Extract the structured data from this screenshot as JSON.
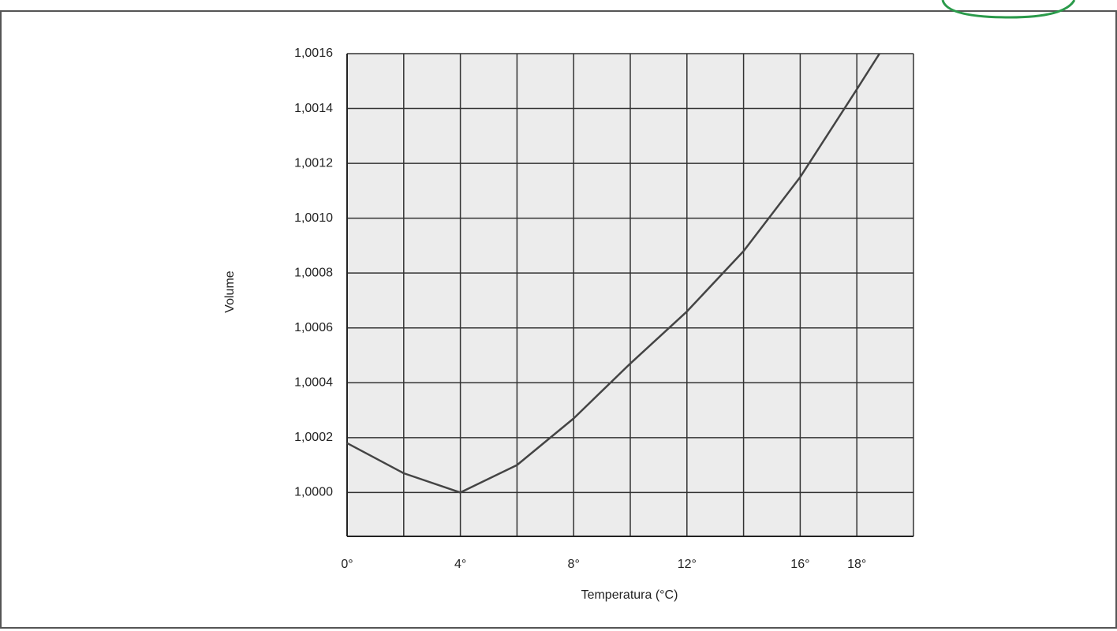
{
  "chart_data": {
    "type": "line",
    "x_label": "Temperatura (°C)",
    "y_label": "Volume",
    "x": [
      0,
      2,
      4,
      6,
      8,
      10,
      12,
      14,
      16,
      18,
      18.8
    ],
    "series": [
      {
        "color": "#444444",
        "values": [
          1.00018,
          1.00007,
          1.0,
          1.0001,
          1.00027,
          1.00047,
          1.00066,
          1.00088,
          1.00115,
          1.00147,
          1.0016
        ]
      }
    ],
    "xlim": [
      0,
      20
    ],
    "ylim": [
      0.99984,
      1.0016
    ],
    "xticks": [
      {
        "value": 0,
        "label": "0°"
      },
      {
        "value": 4,
        "label": "4°"
      },
      {
        "value": 8,
        "label": "8°"
      },
      {
        "value": 12,
        "label": "12°"
      },
      {
        "value": 16,
        "label": "16°"
      },
      {
        "value": 18,
        "label": "18°"
      }
    ],
    "xgrid": [
      0,
      2,
      4,
      6,
      8,
      10,
      12,
      14,
      16,
      18,
      20
    ],
    "yticks": [
      {
        "value": 1.0,
        "label": "1,0000"
      },
      {
        "value": 1.0002,
        "label": "1,0002"
      },
      {
        "value": 1.0004,
        "label": "1,0004"
      },
      {
        "value": 1.0006,
        "label": "1,0006"
      },
      {
        "value": 1.0008,
        "label": "1,0008"
      },
      {
        "value": 1.001,
        "label": "1,0010"
      },
      {
        "value": 1.0012,
        "label": "1,0012"
      },
      {
        "value": 1.0014,
        "label": "1,0014"
      },
      {
        "value": 1.0016,
        "label": "1,0016"
      }
    ],
    "grid": true
  }
}
